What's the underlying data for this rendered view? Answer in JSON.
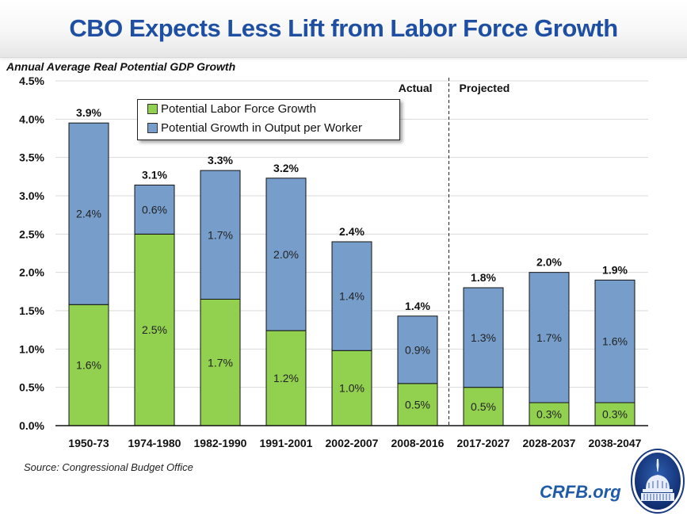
{
  "header": {
    "title": "CBO Expects Less Lift from Labor Force Growth"
  },
  "colors": {
    "labor": "#92d050",
    "output": "#779ecb",
    "title": "#1f4fa3",
    "brand": "#1f5ba8"
  },
  "chart_data": {
    "type": "bar",
    "stacked": true,
    "title": "CBO Expects Less Lift from Labor Force Growth",
    "xlabel": "",
    "ylabel": "Annual Average Real Potential GDP Growth",
    "ylim": [
      0,
      4.5
    ],
    "yticks": [
      0,
      0.5,
      1.0,
      1.5,
      2.0,
      2.5,
      3.0,
      3.5,
      4.0,
      4.5
    ],
    "ytick_labels": [
      "0.0%",
      "0.5%",
      "1.0%",
      "1.5%",
      "2.0%",
      "2.5%",
      "3.0%",
      "3.5%",
      "4.0%",
      "4.5%"
    ],
    "grid": true,
    "legend_position": "top-center",
    "categories": [
      "1950-73",
      "1974-1980",
      "1982-1990",
      "1991-2001",
      "2002-2007",
      "2008-2016",
      "2017-2027",
      "2028-2037",
      "2038-2047"
    ],
    "series": [
      {
        "name": "Potential Labor Force Growth",
        "color": "#92d050",
        "values": [
          1.58,
          2.5,
          1.65,
          1.24,
          0.98,
          0.55,
          0.5,
          0.3,
          0.3
        ],
        "labels": [
          "1.6%",
          "2.5%",
          "1.7%",
          "1.2%",
          "1.0%",
          "0.5%",
          "0.5%",
          "0.3%",
          "0.3%"
        ]
      },
      {
        "name": "Potential Growth in Output per Worker",
        "color": "#779ecb",
        "values": [
          2.37,
          0.64,
          1.68,
          1.99,
          1.42,
          0.88,
          1.3,
          1.7,
          1.6
        ],
        "labels": [
          "2.4%",
          "0.6%",
          "1.7%",
          "2.0%",
          "1.4%",
          "0.9%",
          "1.3%",
          "1.7%",
          "1.6%"
        ]
      }
    ],
    "totals": [
      "3.9%",
      "3.1%",
      "3.3%",
      "3.2%",
      "2.4%",
      "1.4%",
      "1.8%",
      "2.0%",
      "1.9%"
    ],
    "annotations": {
      "divider_after_category": "2008-2016",
      "left_label": "Actual",
      "right_label": "Projected"
    }
  },
  "footer": {
    "source": "Source: Congressional Budget Office",
    "brand": "CRFB.org",
    "logo_icon": "capitol-dome-seal-icon"
  }
}
